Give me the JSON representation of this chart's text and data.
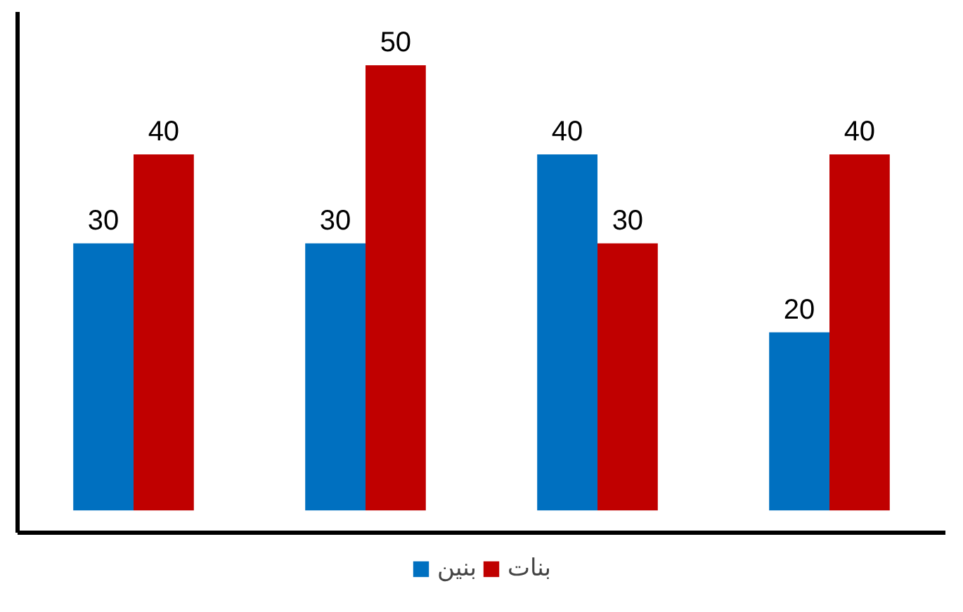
{
  "chart_data": {
    "type": "bar",
    "categories": [
      null,
      null,
      null,
      null
    ],
    "series": [
      {
        "name": "بنين",
        "color": "#0070c0",
        "values": [
          30,
          30,
          40,
          20
        ]
      },
      {
        "name": "بنات",
        "color": "#c00000",
        "values": [
          40,
          50,
          30,
          40
        ]
      }
    ],
    "ylim": [
      -2.5,
      56
    ],
    "data_labels": true,
    "legend": "bottom",
    "tick_labels": false,
    "grid": false
  }
}
